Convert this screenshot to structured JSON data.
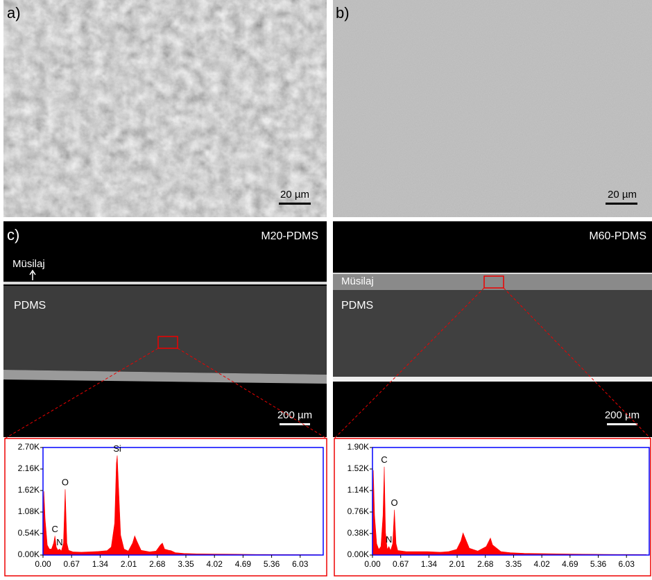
{
  "panels": [
    {
      "label": "a)",
      "scale_bar": "20 µm"
    },
    {
      "label": "b)",
      "scale_bar": "20 µm"
    }
  ],
  "cross_sections": [
    {
      "label": "c)",
      "sample": "M20-PDMS",
      "top_layer": "Müsilaj",
      "bulk_layer": "PDMS",
      "scale_bar": "200 µm"
    },
    {
      "sample": "M60-PDMS",
      "top_layer": "Müsilaj",
      "bulk_layer": "PDMS",
      "scale_bar": "200 µm"
    }
  ],
  "chart_data": [
    {
      "type": "area",
      "color": "#ff0000",
      "x": [
        0,
        0.02,
        0.05,
        0.1,
        0.15,
        0.2,
        0.25,
        0.28,
        0.31,
        0.35,
        0.39,
        0.43,
        0.48,
        0.52,
        0.56,
        0.6,
        0.7,
        0.9,
        1.1,
        1.3,
        1.5,
        1.6,
        1.68,
        1.72,
        1.74,
        1.78,
        1.82,
        1.9,
        2.0,
        2.1,
        2.15,
        2.2,
        2.3,
        2.5,
        2.65,
        2.75,
        2.8,
        2.85,
        2.95,
        3.0,
        3.1,
        3.3,
        3.6,
        4.0,
        4.5,
        5.0,
        5.5,
        6.0,
        6.5
      ],
      "values": [
        0,
        1600,
        900,
        250,
        150,
        150,
        300,
        480,
        200,
        120,
        150,
        100,
        300,
        1650,
        300,
        120,
        80,
        70,
        80,
        90,
        110,
        200,
        800,
        2300,
        2500,
        1500,
        500,
        150,
        100,
        300,
        480,
        350,
        120,
        80,
        100,
        250,
        300,
        150,
        120,
        110,
        60,
        40,
        30,
        25,
        20,
        15,
        12,
        10,
        8
      ],
      "xlim": [
        0,
        6.57
      ],
      "ylim": [
        0,
        2700
      ],
      "xticks": [
        {
          "value": 0,
          "label": "0.00"
        },
        0.67,
        1.34,
        2.01,
        2.68,
        3.35,
        4.02,
        4.69,
        5.36,
        6.03
      ],
      "yticks": [
        {
          "value": 0,
          "label": "0.00K"
        },
        {
          "value": 540,
          "label": "0.54K"
        },
        {
          "value": 1080,
          "label": "1.08K"
        },
        {
          "value": 1620,
          "label": "1.62K"
        },
        {
          "value": 2160,
          "label": "2.16K"
        },
        {
          "value": 2700,
          "label": "2.70K"
        }
      ],
      "annotations": [
        {
          "text": "C",
          "x": 0.28,
          "y": 480
        },
        {
          "text": "N",
          "x": 0.39,
          "y": 150
        },
        {
          "text": "O",
          "x": 0.52,
          "y": 1650
        },
        {
          "text": "Si",
          "x": 1.74,
          "y": 2500
        }
      ]
    },
    {
      "type": "area",
      "color": "#ff0000",
      "x": [
        0,
        0.02,
        0.05,
        0.1,
        0.15,
        0.2,
        0.25,
        0.28,
        0.31,
        0.35,
        0.39,
        0.43,
        0.48,
        0.52,
        0.56,
        0.6,
        0.8,
        1.0,
        1.3,
        1.6,
        1.8,
        2.0,
        2.1,
        2.15,
        2.2,
        2.3,
        2.5,
        2.7,
        2.8,
        2.85,
        2.95,
        3.05,
        3.3,
        3.6,
        4.0,
        4.5,
        5.0,
        5.5,
        6.0,
        6.5
      ],
      "values": [
        0,
        1500,
        700,
        200,
        100,
        150,
        700,
        1560,
        400,
        100,
        150,
        80,
        200,
        800,
        200,
        80,
        60,
        60,
        60,
        50,
        60,
        100,
        250,
        390,
        300,
        120,
        70,
        150,
        300,
        180,
        120,
        60,
        40,
        30,
        25,
        20,
        15,
        12,
        10,
        8
      ],
      "xlim": [
        0,
        6.57
      ],
      "ylim": [
        0,
        1900
      ],
      "xticks": [
        {
          "value": 0,
          "label": "0.00"
        },
        0.67,
        1.34,
        2.01,
        2.68,
        3.35,
        4.02,
        4.69,
        5.36,
        6.03
      ],
      "yticks": [
        {
          "value": 0,
          "label": "0.00K"
        },
        {
          "value": 380,
          "label": "0.38K"
        },
        {
          "value": 760,
          "label": "0.76K"
        },
        {
          "value": 1140,
          "label": "1.14K"
        },
        {
          "value": 1520,
          "label": "1.52K"
        },
        {
          "value": 1900,
          "label": "1.90K"
        }
      ],
      "annotations": [
        {
          "text": "C",
          "x": 0.28,
          "y": 1560
        },
        {
          "text": "N",
          "x": 0.39,
          "y": 150
        },
        {
          "text": "O",
          "x": 0.52,
          "y": 800
        }
      ]
    }
  ]
}
